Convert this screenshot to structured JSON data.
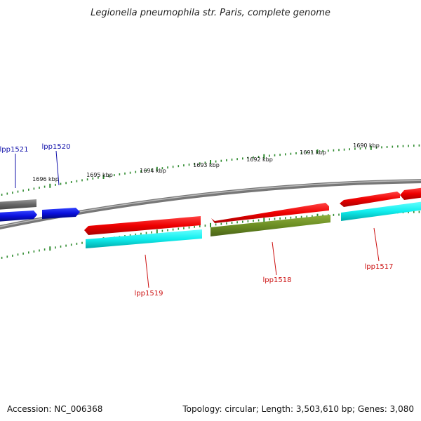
{
  "map": {
    "title": "Legionella pneumophila str. Paris, complete genome",
    "accession": "Accession: NC_006368",
    "summary": "Topology: circular; Length: 3,503,610 bp; Genes: 3,080",
    "colors": {
      "backbone": "#888888",
      "tick": "#2e8b2e",
      "forward_label": "#1010aa",
      "reverse_label": "#cc1111",
      "cds": "#ee1111",
      "rna_cyan": "#11ffff",
      "olive": "#6b8e23",
      "blue": "#0a10dd",
      "gray": "#666666"
    }
  },
  "kbp_labels": [
    "1690 kbp",
    "1691 kbp",
    "1692 kbp",
    "1693 kbp",
    "1694 kbp",
    "1695 kbp",
    "1696 kbp"
  ],
  "genes": {
    "lpp1521": "lpp1521",
    "lpp1520": "lpp1520",
    "lpp1519": "lpp1519",
    "lpp1518": "lpp1518",
    "lpp1517": "lpp1517"
  }
}
